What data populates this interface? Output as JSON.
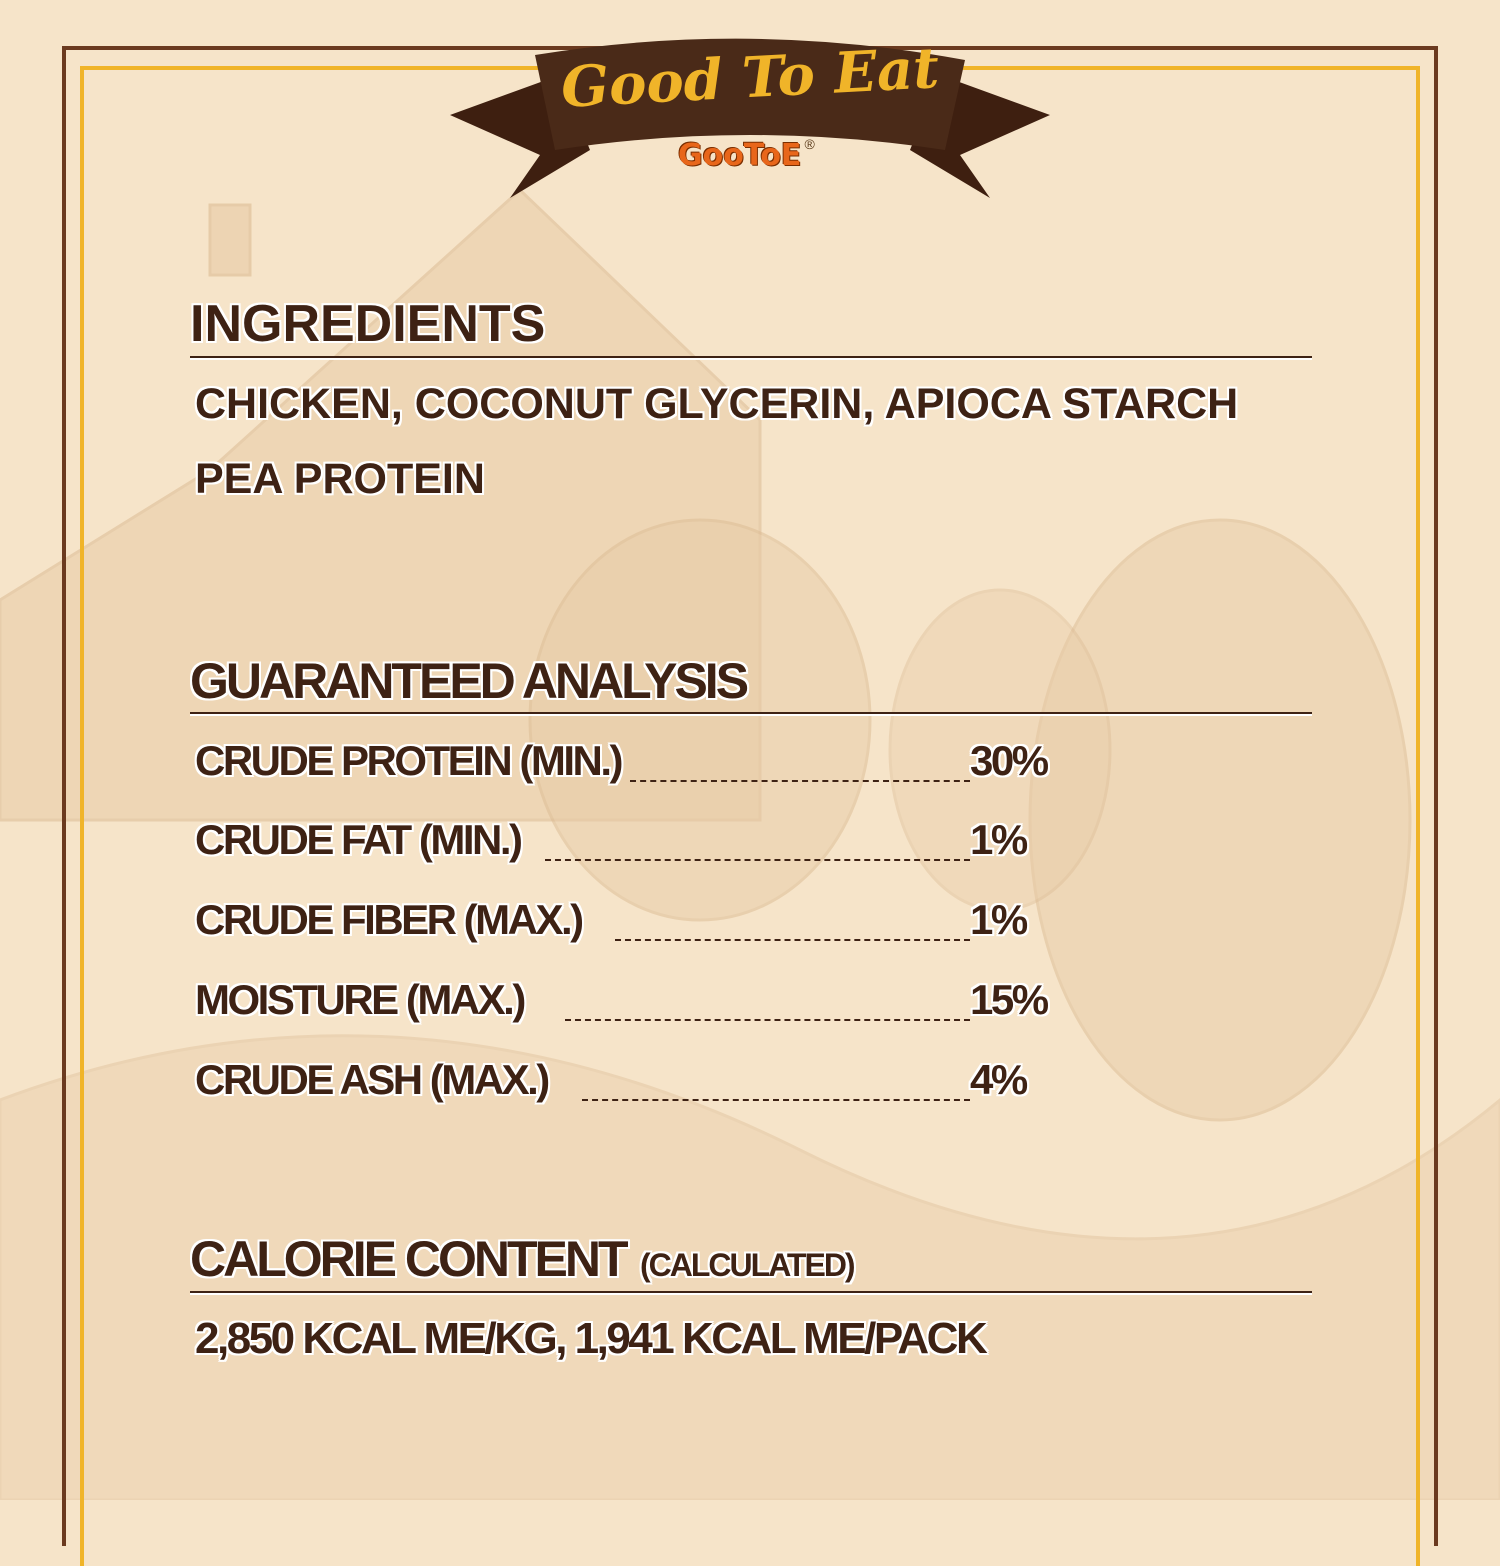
{
  "header": {
    "title": "Good To Eat",
    "brand": "GooToE",
    "registered_mark": "®"
  },
  "ingredients": {
    "heading": "INGREDIENTS",
    "lines": [
      "CHICKEN, COCONUT GLYCERIN, APIOCA STARCH",
      "PEA PROTEIN"
    ]
  },
  "analysis": {
    "heading": "GUARANTEED ANALYSIS",
    "rows": [
      {
        "label": "CRUDE PROTEIN (MIN.)",
        "value": "30%"
      },
      {
        "label": "CRUDE FAT (MIN.)",
        "value": "1%"
      },
      {
        "label": "CRUDE FIBER (MAX.)",
        "value": "1%"
      },
      {
        "label": "MOISTURE (MAX.)",
        "value": "15%"
      },
      {
        "label": "CRUDE ASH (MAX.)",
        "value": "4%"
      }
    ]
  },
  "calorie": {
    "heading": "CALORIE CONTENT",
    "subheading": "(CALCULATED)",
    "value": "2,850 KCAL ME/KG, 1,941 KCAL ME/PACK"
  },
  "colors": {
    "background": "#f6e4c9",
    "text": "#3e2214",
    "ribbon": "#4a2a18",
    "accent_yellow": "#f0b429",
    "brand_orange": "#e8661a"
  }
}
